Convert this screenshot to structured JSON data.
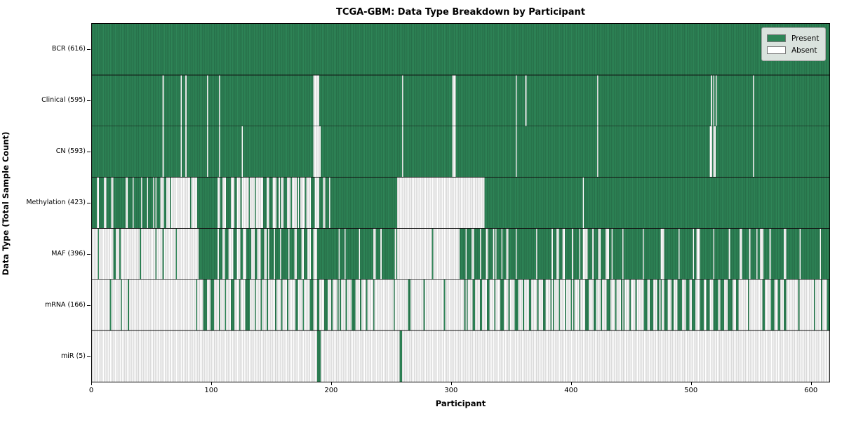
{
  "chart_data": {
    "type": "heatmap",
    "title": "TCGA-GBM: Data Type Breakdown by Participant",
    "xlabel": "Participant",
    "ylabel": "Data Type (Total Sample Count)",
    "x_range": [
      0,
      616
    ],
    "x_ticks": [
      0,
      100,
      200,
      300,
      400,
      500,
      600
    ],
    "grid": false,
    "legend_position": "upper right",
    "legend": [
      {
        "label": "Present",
        "color": "#2e8557"
      },
      {
        "label": "Absent",
        "color": "#ffffff"
      }
    ],
    "colors": {
      "present": "#2e8557",
      "absent": "#ffffff",
      "bar_edge_overlay": "rgba(0,0,0,0.32)",
      "row_separator": "#111111",
      "plot_border": "#000000"
    },
    "value_semantics": "segments are [start_participant, end_participant, fraction_present]; 1=all present, 0=all absent, fractional=mixed striped region",
    "rows": [
      {
        "label": "BCR (616)",
        "data_type": "BCR",
        "total_samples": 616,
        "segments": [
          [
            0,
            616,
            1
          ]
        ]
      },
      {
        "label": "Clinical (595)",
        "data_type": "Clinical",
        "total_samples": 595,
        "segments": [
          [
            0,
            59,
            1
          ],
          [
            59,
            60,
            0
          ],
          [
            60,
            74,
            1
          ],
          [
            74,
            75,
            0
          ],
          [
            75,
            78,
            1
          ],
          [
            78,
            79,
            0
          ],
          [
            79,
            96,
            1
          ],
          [
            96,
            97,
            0
          ],
          [
            97,
            106,
            1
          ],
          [
            106,
            107,
            0
          ],
          [
            107,
            185,
            1
          ],
          [
            185,
            190,
            0
          ],
          [
            190,
            259,
            1
          ],
          [
            259,
            260,
            0
          ],
          [
            260,
            301,
            1
          ],
          [
            301,
            304,
            0
          ],
          [
            304,
            354,
            1
          ],
          [
            354,
            355,
            0
          ],
          [
            355,
            362,
            1
          ],
          [
            362,
            363,
            0
          ],
          [
            363,
            422,
            1
          ],
          [
            422,
            423,
            0
          ],
          [
            423,
            517,
            1
          ],
          [
            517,
            518,
            0
          ],
          [
            518,
            519,
            1
          ],
          [
            519,
            520,
            0
          ],
          [
            520,
            521,
            1
          ],
          [
            521,
            522,
            0
          ],
          [
            522,
            552,
            1
          ],
          [
            552,
            553,
            0
          ],
          [
            553,
            616,
            1
          ]
        ]
      },
      {
        "label": "CN (593)",
        "data_type": "CN",
        "total_samples": 593,
        "segments": [
          [
            0,
            59,
            1
          ],
          [
            59,
            60,
            0
          ],
          [
            60,
            74,
            1
          ],
          [
            74,
            75,
            0
          ],
          [
            75,
            78,
            1
          ],
          [
            78,
            79,
            0
          ],
          [
            79,
            96,
            1
          ],
          [
            96,
            97,
            0
          ],
          [
            97,
            106,
            1
          ],
          [
            106,
            107,
            0
          ],
          [
            107,
            125,
            1
          ],
          [
            125,
            126,
            0
          ],
          [
            126,
            185,
            1
          ],
          [
            185,
            191,
            0
          ],
          [
            191,
            259,
            1
          ],
          [
            259,
            260,
            0
          ],
          [
            260,
            301,
            1
          ],
          [
            301,
            304,
            0
          ],
          [
            304,
            354,
            1
          ],
          [
            354,
            355,
            0
          ],
          [
            355,
            422,
            1
          ],
          [
            422,
            423,
            0
          ],
          [
            423,
            516,
            1
          ],
          [
            516,
            518,
            0
          ],
          [
            518,
            519,
            1
          ],
          [
            519,
            521,
            0
          ],
          [
            521,
            552,
            1
          ],
          [
            552,
            553,
            0
          ],
          [
            553,
            616,
            1
          ]
        ]
      },
      {
        "label": "Methylation (423)",
        "data_type": "Methylation",
        "total_samples": 423,
        "segments": [
          [
            0,
            20,
            0.65
          ],
          [
            20,
            57,
            0.78
          ],
          [
            57,
            60,
            0
          ],
          [
            60,
            62,
            1
          ],
          [
            62,
            88,
            0.08
          ],
          [
            88,
            105,
            1
          ],
          [
            105,
            125,
            0.48
          ],
          [
            125,
            140,
            0.2
          ],
          [
            140,
            165,
            0.52
          ],
          [
            165,
            185,
            0.25
          ],
          [
            185,
            199,
            0.45
          ],
          [
            199,
            255,
            1
          ],
          [
            255,
            328,
            0
          ],
          [
            328,
            410,
            1
          ],
          [
            410,
            411,
            0
          ],
          [
            411,
            616,
            1
          ]
        ]
      },
      {
        "label": "MAF (396)",
        "data_type": "MAF",
        "total_samples": 396,
        "segments": [
          [
            0,
            18,
            0.12
          ],
          [
            18,
            20,
            1
          ],
          [
            20,
            28,
            0.1
          ],
          [
            28,
            59,
            0.03
          ],
          [
            59,
            60,
            1
          ],
          [
            60,
            89,
            0.02
          ],
          [
            89,
            105,
            1
          ],
          [
            105,
            150,
            0.5
          ],
          [
            150,
            175,
            0.78
          ],
          [
            175,
            190,
            0.5
          ],
          [
            190,
            206,
            0.95
          ],
          [
            206,
            207,
            0
          ],
          [
            207,
            255,
            0.85
          ],
          [
            255,
            284,
            0
          ],
          [
            284,
            285,
            1
          ],
          [
            285,
            307,
            0
          ],
          [
            307,
            342,
            0.8
          ],
          [
            342,
            350,
            0.45
          ],
          [
            350,
            388,
            0.92
          ],
          [
            388,
            397,
            0.5
          ],
          [
            397,
            407,
            0.9
          ],
          [
            407,
            414,
            0.5
          ],
          [
            414,
            423,
            0.9
          ],
          [
            423,
            435,
            0.5
          ],
          [
            435,
            475,
            0.95
          ],
          [
            475,
            478,
            0.3
          ],
          [
            478,
            505,
            0.93
          ],
          [
            505,
            508,
            0.3
          ],
          [
            508,
            540,
            0.95
          ],
          [
            540,
            546,
            0.4
          ],
          [
            546,
            555,
            0.9
          ],
          [
            555,
            561,
            0.4
          ],
          [
            561,
            616,
            0.93
          ]
        ]
      },
      {
        "label": "mRNA (166)",
        "data_type": "mRNA",
        "total_samples": 166,
        "segments": [
          [
            0,
            24,
            0.04
          ],
          [
            24,
            25,
            1
          ],
          [
            25,
            30,
            0
          ],
          [
            30,
            31,
            1
          ],
          [
            31,
            92,
            0.02
          ],
          [
            92,
            112,
            0.4
          ],
          [
            112,
            128,
            0.25
          ],
          [
            128,
            132,
            0.9
          ],
          [
            132,
            180,
            0.2
          ],
          [
            180,
            200,
            0.5
          ],
          [
            200,
            230,
            0.35
          ],
          [
            230,
            310,
            0.07
          ],
          [
            310,
            460,
            0.28
          ],
          [
            460,
            540,
            0.5
          ],
          [
            540,
            565,
            0.1
          ],
          [
            565,
            580,
            0.5
          ],
          [
            580,
            605,
            0.08
          ],
          [
            605,
            616,
            0.3
          ]
        ]
      },
      {
        "label": "miR (5)",
        "data_type": "miR",
        "total_samples": 5,
        "segments": [
          [
            0,
            188,
            0
          ],
          [
            188,
            191,
            1
          ],
          [
            191,
            257,
            0
          ],
          [
            257,
            259,
            1
          ],
          [
            259,
            616,
            0
          ]
        ]
      }
    ]
  }
}
